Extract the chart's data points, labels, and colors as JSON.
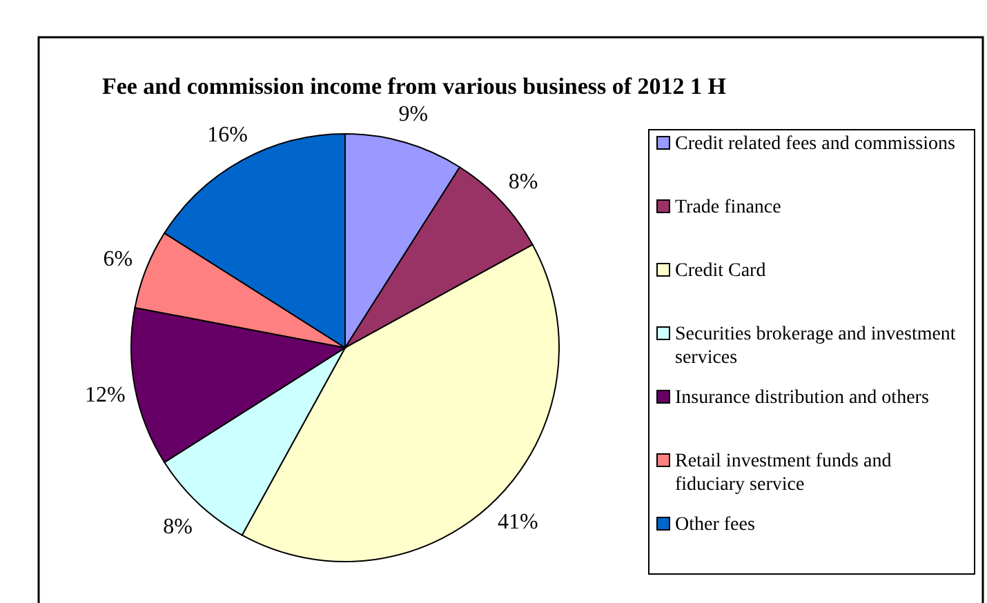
{
  "chart_data": {
    "type": "pie",
    "title": "Fee and commission income from various business of 2012 1 H",
    "categories": [
      "Credit related fees and commissions",
      "Trade finance",
      "Credit Card",
      "Securities brokerage and investment services",
      "Insurance distribution and others",
      "Retail investment funds and fiduciary service",
      "Other fees"
    ],
    "values": [
      9,
      8,
      41,
      8,
      12,
      6,
      16
    ],
    "colors": [
      "#9999ff",
      "#993366",
      "#ffffcc",
      "#ccffff",
      "#660066",
      "#ff8080",
      "#0066cc"
    ],
    "value_labels": [
      "9%",
      "8%",
      "41%",
      "8%",
      "12%",
      "6%",
      "16%"
    ],
    "legend": "right"
  }
}
